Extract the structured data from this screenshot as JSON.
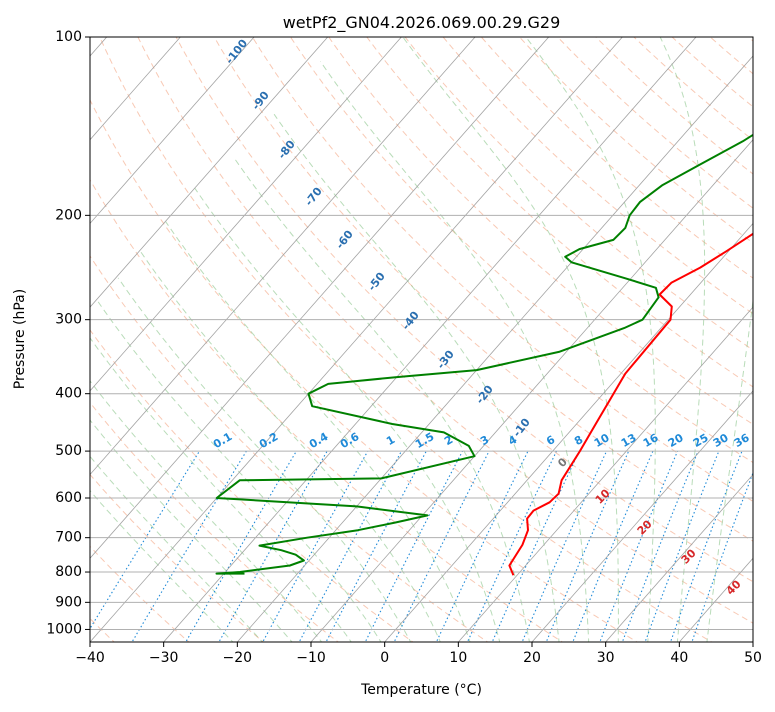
{
  "chart_data": {
    "type": "line",
    "subtype": "skew-t log-p diagram",
    "title": "wetPf2_GN04.2026.069.00.29.G29",
    "xlabel": "Temperature (°C)",
    "ylabel": "Pressure (hPa)",
    "xlim": [
      -40,
      50
    ],
    "ylim": [
      1050,
      100
    ],
    "y_scale": "log",
    "x_ticks": [
      "−40",
      "−30",
      "−20",
      "−10",
      "0",
      "10",
      "20",
      "30",
      "40",
      "50"
    ],
    "y_ticks": [
      "100",
      "200",
      "300",
      "400",
      "500",
      "600",
      "700",
      "800",
      "900",
      "1000"
    ],
    "grid": true,
    "series": [
      {
        "color": "#ff0000",
        "points": [
          [
            9.5,
            810
          ],
          [
            7.8,
            780
          ],
          [
            7.1,
            720
          ],
          [
            6.1,
            680
          ],
          [
            4.6,
            650
          ],
          [
            4.5,
            630
          ],
          [
            5.7,
            610
          ],
          [
            5.9,
            590
          ],
          [
            4.7,
            560
          ],
          [
            3.7,
            500
          ],
          [
            2.6,
            450
          ],
          [
            1.4,
            400
          ],
          [
            0.6,
            370
          ],
          [
            0.3,
            300
          ],
          [
            -1.1,
            285
          ],
          [
            -4.2,
            272
          ],
          [
            -4.0,
            260
          ],
          [
            -1.9,
            245
          ],
          [
            -0.3,
            230
          ],
          [
            2.3,
            205
          ],
          [
            6.7,
            180
          ],
          [
            12.6,
            155
          ],
          [
            16.1,
            140
          ],
          [
            17.6,
            130
          ],
          [
            20.1,
            120
          ],
          [
            22.1,
            110
          ],
          [
            23.2,
            100
          ]
        ]
      },
      {
        "color": "#008000",
        "points": [
          [
            -27.2,
            805
          ],
          [
            -31.0,
            805
          ],
          [
            -28.0,
            800
          ],
          [
            -22.0,
            780
          ],
          [
            -20.7,
            765
          ],
          [
            -22.5,
            748
          ],
          [
            -25.0,
            735
          ],
          [
            -28.5,
            722
          ],
          [
            -23.0,
            700
          ],
          [
            -17.0,
            680
          ],
          [
            -12.8,
            660
          ],
          [
            -9.3,
            642
          ],
          [
            -20.0,
            620
          ],
          [
            -40.0,
            600
          ],
          [
            -39.0,
            560
          ],
          [
            -20.0,
            556
          ],
          [
            -10.0,
            510
          ],
          [
            -12.0,
            490
          ],
          [
            -17.0,
            465
          ],
          [
            -25.0,
            450
          ],
          [
            -38.0,
            420
          ],
          [
            -40.0,
            400
          ],
          [
            -38.5,
            385
          ],
          [
            -30.0,
            375
          ],
          [
            -20.0,
            365
          ],
          [
            -11.0,
            340
          ],
          [
            -5.0,
            310
          ],
          [
            -3.5,
            300
          ],
          [
            -4.0,
            275
          ],
          [
            -5.5,
            265
          ],
          [
            -11.0,
            255
          ],
          [
            -20.0,
            240
          ],
          [
            -21.5,
            235
          ],
          [
            -20.5,
            228
          ],
          [
            -17.0,
            220
          ],
          [
            -16.8,
            210
          ],
          [
            -17.7,
            200
          ],
          [
            -17.9,
            190
          ],
          [
            -16.9,
            178
          ],
          [
            -14.2,
            164
          ],
          [
            -11.2,
            150
          ],
          [
            -9.5,
            140
          ],
          [
            -8.6,
            130
          ],
          [
            -8.3,
            120
          ],
          [
            -7.6,
            113
          ],
          [
            -4.3,
            107
          ],
          [
            -0.7,
            102
          ],
          [
            -0.5,
            100
          ]
        ]
      }
    ],
    "dry_adiabat_labels": [
      "-100",
      "-90",
      "-80",
      "-70",
      "-60",
      "-50",
      "-40",
      "-30",
      "-20",
      "-10"
    ],
    "mixing_ratio_labels": [
      "0.1",
      "0.2",
      "0.4",
      "0.6",
      "1",
      "1.5",
      "2",
      "3",
      "4",
      "6",
      "8",
      "10",
      "13",
      "16",
      "20",
      "25",
      "30",
      "36"
    ],
    "moist_adiabat_labels": [
      "0",
      "10",
      "20",
      "30",
      "40"
    ],
    "colors": {
      "temperature": "#ff0000",
      "dewpoint": "#008000",
      "dry_adiabat": "#f4a582",
      "moist_adiabat": "#7fbf7f",
      "mixing_ratio": "#1f8ad8",
      "isotherm": "#999999",
      "dry_adiabat_label": "#2a6fb0",
      "moist_adiabat_label": "#d62728"
    }
  }
}
